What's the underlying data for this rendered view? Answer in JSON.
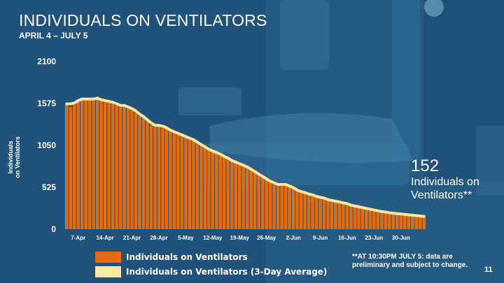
{
  "slide": {
    "title": "INDIVIDUALS ON VENTILATORS",
    "subtitle": "APRIL 4 – JULY 5",
    "page_number": "11",
    "callout_value": "152",
    "callout_text": "Individuals on Ventilators**",
    "footnote": "**AT 10:30PM JULY 5: data are preliminary and subject to change."
  },
  "colors": {
    "bar": "#e46c0a",
    "line": "#fde9a3",
    "background": "#24587f",
    "text": "#ffffff"
  },
  "chart_data": {
    "type": "bar",
    "ylabel": "Individuals on Ventilators",
    "ylim": [
      0,
      2100
    ],
    "yticks": [
      0,
      525,
      1050,
      1575,
      2100
    ],
    "xticks": [
      "7-Apr",
      "14-Apr",
      "21-Apr",
      "28-Apr",
      "5-May",
      "12-May",
      "19-May",
      "26-May",
      "2-Jun",
      "9-Jun",
      "16-Jun",
      "23-Jun",
      "30-Jun"
    ],
    "start_date": "April 4",
    "end_date": "July 5",
    "grid": false,
    "legend_position": "bottom",
    "series": [
      {
        "name": "Individuals on Ventilators",
        "kind": "bar",
        "color": "#e46c0a",
        "values": [
          1560,
          1530,
          1590,
          1620,
          1650,
          1620,
          1630,
          1620,
          1660,
          1600,
          1590,
          1610,
          1600,
          1550,
          1530,
          1560,
          1510,
          1510,
          1460,
          1420,
          1400,
          1350,
          1300,
          1280,
          1300,
          1300,
          1270,
          1240,
          1220,
          1200,
          1190,
          1170,
          1150,
          1120,
          1100,
          1070,
          1040,
          1000,
          970,
          960,
          940,
          920,
          890,
          870,
          840,
          830,
          810,
          790,
          770,
          740,
          700,
          670,
          640,
          620,
          590,
          550,
          550,
          570,
          560,
          520,
          500,
          470,
          450,
          440,
          430,
          420,
          400,
          390,
          370,
          360,
          350,
          340,
          330,
          320,
          300,
          290,
          280,
          270,
          260,
          250,
          240,
          230,
          220,
          210,
          200,
          200,
          190,
          190,
          180,
          180,
          170,
          170,
          160,
          152
        ]
      },
      {
        "name": "Individuals on Ventilators (3-Day Average)",
        "kind": "line",
        "color": "#fde9a3",
        "values": [
          1570,
          1570,
          1580,
          1610,
          1630,
          1630,
          1630,
          1630,
          1640,
          1620,
          1610,
          1600,
          1590,
          1570,
          1550,
          1550,
          1530,
          1510,
          1480,
          1440,
          1410,
          1370,
          1330,
          1300,
          1300,
          1290,
          1270,
          1240,
          1220,
          1200,
          1180,
          1160,
          1140,
          1120,
          1090,
          1060,
          1030,
          1000,
          980,
          960,
          940,
          910,
          890,
          860,
          840,
          820,
          800,
          780,
          750,
          720,
          690,
          660,
          630,
          600,
          580,
          560,
          560,
          560,
          540,
          520,
          490,
          470,
          460,
          440,
          430,
          410,
          400,
          390,
          370,
          360,
          350,
          340,
          330,
          320,
          300,
          290,
          280,
          270,
          260,
          250,
          240,
          230,
          220,
          215,
          205,
          200,
          195,
          190,
          185,
          180,
          175,
          170,
          165,
          160
        ]
      }
    ]
  }
}
